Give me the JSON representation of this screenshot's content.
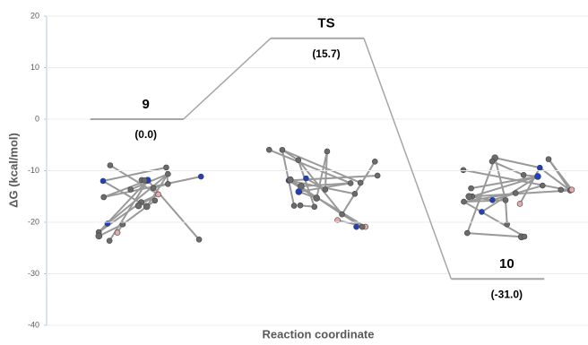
{
  "chart_data": {
    "type": "energy-profile",
    "ylabel": "ΔG (kcal/mol)",
    "xlabel": "Reaction coordinate",
    "categories": [
      "9",
      "TS",
      "10"
    ],
    "values": [
      0.0,
      15.7,
      -31.0
    ],
    "value_labels": [
      "(0.0)",
      "(15.7)",
      "(-31.0)"
    ],
    "color": "#a6a6a6",
    "ylim": [
      -40,
      20
    ],
    "yticks": [
      -40,
      -30,
      -20,
      -10,
      0,
      10,
      20
    ],
    "grid": true
  }
}
